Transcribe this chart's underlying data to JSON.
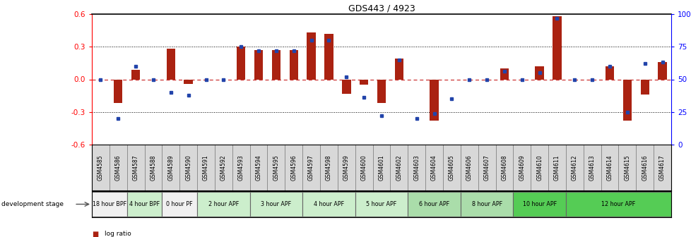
{
  "title": "GDS443 / 4923",
  "samples": [
    "GSM4585",
    "GSM4586",
    "GSM4587",
    "GSM4588",
    "GSM4589",
    "GSM4590",
    "GSM4591",
    "GSM4592",
    "GSM4593",
    "GSM4594",
    "GSM4595",
    "GSM4596",
    "GSM4597",
    "GSM4598",
    "GSM4599",
    "GSM4600",
    "GSM4601",
    "GSM4602",
    "GSM4603",
    "GSM4604",
    "GSM4605",
    "GSM4606",
    "GSM4607",
    "GSM4608",
    "GSM4609",
    "GSM4610",
    "GSM4611",
    "GSM4612",
    "GSM4613",
    "GSM4614",
    "GSM4615",
    "GSM4616",
    "GSM4617"
  ],
  "log_ratio": [
    0.0,
    -0.22,
    0.09,
    0.0,
    0.28,
    -0.04,
    0.0,
    0.0,
    0.3,
    0.27,
    0.27,
    0.27,
    0.43,
    0.42,
    -0.13,
    -0.05,
    -0.22,
    0.19,
    0.0,
    -0.38,
    0.0,
    0.0,
    0.0,
    0.1,
    0.0,
    0.12,
    0.58,
    0.0,
    0.0,
    0.12,
    -0.38,
    -0.14,
    0.16
  ],
  "percentile": [
    50,
    20,
    60,
    50,
    40,
    38,
    50,
    50,
    75,
    72,
    72,
    72,
    80,
    80,
    52,
    36,
    22,
    65,
    20,
    24,
    35,
    50,
    50,
    56,
    50,
    55,
    97,
    50,
    50,
    60,
    25,
    62,
    63
  ],
  "stages": [
    {
      "name": "18 hour BPF",
      "start": 0,
      "end": 2,
      "color": "#f0f0f0"
    },
    {
      "name": "4 hour BPF",
      "start": 2,
      "end": 4,
      "color": "#cceecc"
    },
    {
      "name": "0 hour PF",
      "start": 4,
      "end": 6,
      "color": "#f0f0f0"
    },
    {
      "name": "2 hour APF",
      "start": 6,
      "end": 9,
      "color": "#cceecc"
    },
    {
      "name": "3 hour APF",
      "start": 9,
      "end": 12,
      "color": "#cceecc"
    },
    {
      "name": "4 hour APF",
      "start": 12,
      "end": 15,
      "color": "#cceecc"
    },
    {
      "name": "5 hour APF",
      "start": 15,
      "end": 18,
      "color": "#cceecc"
    },
    {
      "name": "6 hour APF",
      "start": 18,
      "end": 21,
      "color": "#aaddaa"
    },
    {
      "name": "8 hour APF",
      "start": 21,
      "end": 24,
      "color": "#aaddaa"
    },
    {
      "name": "10 hour APF",
      "start": 24,
      "end": 27,
      "color": "#55cc55"
    },
    {
      "name": "12 hour APF",
      "start": 27,
      "end": 33,
      "color": "#55cc55"
    }
  ],
  "ylim_left": [
    -0.6,
    0.6
  ],
  "yticks_left": [
    -0.6,
    -0.3,
    0.0,
    0.3,
    0.6
  ],
  "yticks_right_vals": [
    0,
    25,
    50,
    75,
    100
  ],
  "yticks_right_labels": [
    "0",
    "25",
    "50",
    "75",
    "100%"
  ],
  "bar_color": "#aa2211",
  "dot_color": "#2244aa",
  "zero_line_color": "#cc3333",
  "bg_color": "#ffffff"
}
